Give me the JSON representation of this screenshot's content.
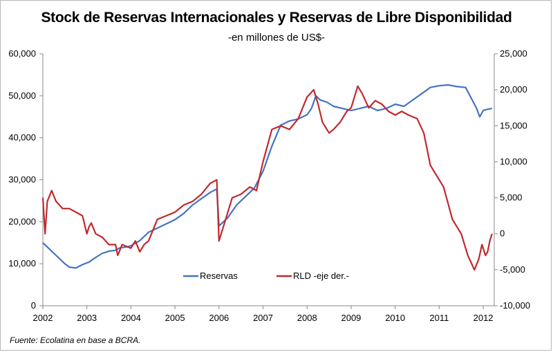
{
  "chart_data": {
    "type": "line",
    "title": "Stock de Reservas Internacionales y Reservas de Libre Disponibilidad",
    "subtitle": "-en millones de US$-",
    "source": "Fuente:  Ecolatina en base a BCRA.",
    "x_ticks": [
      "2002",
      "2003",
      "2004",
      "2005",
      "2006",
      "2007",
      "2008",
      "2009",
      "2010",
      "2011",
      "2012"
    ],
    "xlim": [
      2002,
      2012.25
    ],
    "y_left": {
      "ticks": [
        "0",
        "10,000",
        "20,000",
        "30,000",
        "40,000",
        "50,000",
        "60,000"
      ],
      "ylim": [
        0,
        60000
      ]
    },
    "y_right": {
      "ticks": [
        "-10,000",
        "-5,000",
        "0",
        "5,000",
        "10,000",
        "15,000",
        "20,000",
        "25,000"
      ],
      "ylim": [
        -10000,
        25000
      ]
    },
    "grid": false,
    "legend_position": "bottom-center",
    "series": [
      {
        "name": "Reservas",
        "axis": "left",
        "color": "#4472c4",
        "x": [
          2002.0,
          2002.1,
          2002.2,
          2002.3,
          2002.4,
          2002.5,
          2002.6,
          2002.75,
          2002.9,
          2003.0,
          2003.05,
          2003.1,
          2003.2,
          2003.35,
          2003.5,
          2003.65,
          2003.75,
          2003.9,
          2004.0,
          2004.2,
          2004.4,
          2004.6,
          2004.8,
          2005.0,
          2005.2,
          2005.4,
          2005.6,
          2005.8,
          2005.95,
          2006.0,
          2006.05,
          2006.2,
          2006.4,
          2006.6,
          2006.8,
          2007.0,
          2007.2,
          2007.4,
          2007.6,
          2007.8,
          2008.0,
          2008.1,
          2008.2,
          2008.3,
          2008.45,
          2008.6,
          2008.8,
          2009.0,
          2009.2,
          2009.4,
          2009.6,
          2009.8,
          2010.0,
          2010.2,
          2010.4,
          2010.6,
          2010.8,
          2011.0,
          2011.2,
          2011.4,
          2011.6,
          2011.75,
          2011.85,
          2011.92,
          2012.0,
          2012.1,
          2012.2
        ],
        "y": [
          15000,
          14000,
          13000,
          12000,
          11000,
          10000,
          9200,
          9000,
          9800,
          10200,
          10400,
          10800,
          11500,
          12500,
          13000,
          13200,
          13800,
          14000,
          14300,
          15500,
          17500,
          18500,
          19500,
          20500,
          22000,
          24000,
          25500,
          27000,
          27800,
          19000,
          19500,
          21000,
          24000,
          26000,
          28000,
          32000,
          38000,
          43000,
          44000,
          44500,
          45500,
          47000,
          50000,
          49000,
          48500,
          47500,
          47000,
          46500,
          47000,
          47500,
          46500,
          47000,
          48000,
          47500,
          49000,
          50500,
          52000,
          52400,
          52600,
          52200,
          52000,
          49000,
          47000,
          45000,
          46500,
          46800,
          47000
        ]
      },
      {
        "name": "RLD -eje der.-",
        "axis": "right",
        "color": "#c0282d",
        "x": [
          2002.0,
          2002.05,
          2002.1,
          2002.2,
          2002.3,
          2002.45,
          2002.6,
          2002.75,
          2002.9,
          2003.0,
          2003.05,
          2003.1,
          2003.2,
          2003.35,
          2003.5,
          2003.65,
          2003.7,
          2003.8,
          2004.0,
          2004.1,
          2004.2,
          2004.3,
          2004.4,
          2004.6,
          2004.8,
          2005.0,
          2005.2,
          2005.4,
          2005.6,
          2005.8,
          2005.95,
          2006.0,
          2006.05,
          2006.15,
          2006.3,
          2006.5,
          2006.7,
          2006.85,
          2007.0,
          2007.2,
          2007.4,
          2007.6,
          2007.8,
          2008.0,
          2008.15,
          2008.25,
          2008.35,
          2008.5,
          2008.6,
          2008.75,
          2008.9,
          2009.0,
          2009.15,
          2009.25,
          2009.4,
          2009.55,
          2009.7,
          2009.85,
          2010.0,
          2010.15,
          2010.3,
          2010.5,
          2010.65,
          2010.8,
          2010.95,
          2011.1,
          2011.3,
          2011.5,
          2011.65,
          2011.8,
          2011.9,
          2011.97,
          2012.05,
          2012.1,
          2012.15,
          2012.2
        ],
        "y": [
          5000,
          0,
          4500,
          6000,
          4500,
          3500,
          3500,
          3000,
          2500,
          0,
          1000,
          1500,
          0,
          -500,
          -1500,
          -1500,
          -3000,
          -1500,
          -2000,
          -1000,
          -2500,
          -1500,
          -1000,
          2000,
          2500,
          3000,
          4000,
          4500,
          5500,
          7000,
          7500,
          -1000,
          0,
          2000,
          5000,
          5500,
          6500,
          6000,
          10000,
          14500,
          15000,
          14500,
          16000,
          19000,
          20000,
          18000,
          15500,
          14000,
          14500,
          15500,
          17000,
          17500,
          20500,
          19500,
          17500,
          18500,
          18000,
          17000,
          16500,
          17000,
          16500,
          16000,
          14000,
          9500,
          8000,
          6500,
          2000,
          0,
          -3000,
          -5000,
          -3500,
          -1500,
          -3000,
          -2500,
          -1000,
          0
        ]
      }
    ]
  }
}
